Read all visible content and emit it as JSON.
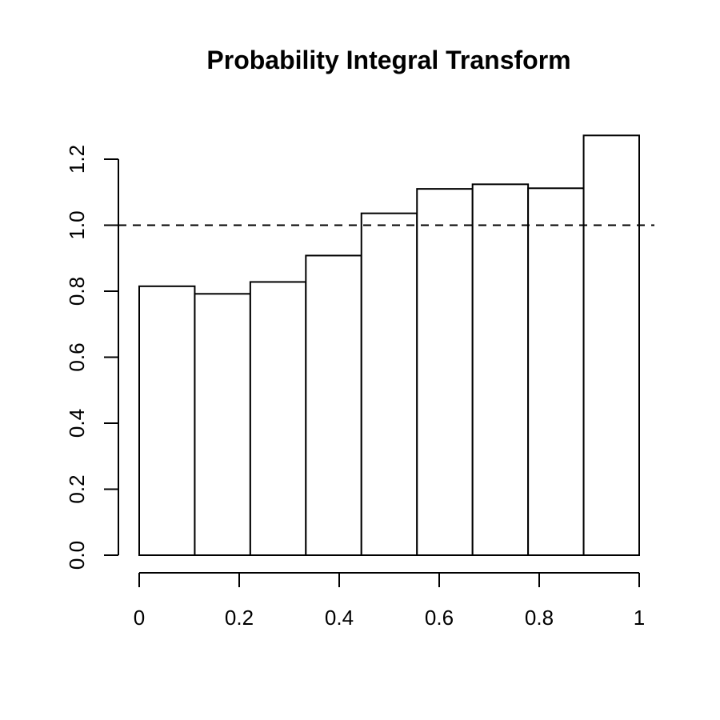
{
  "chart_data": {
    "type": "bar",
    "title": "Probability Integral Transform",
    "xlabel": "",
    "ylabel": "",
    "bin_edges": [
      0,
      0.1111,
      0.2222,
      0.3333,
      0.4444,
      0.5556,
      0.6667,
      0.7778,
      0.8889,
      1
    ],
    "values": [
      0.815,
      0.792,
      0.828,
      0.908,
      1.036,
      1.11,
      1.124,
      1.112,
      1.272
    ],
    "xlim": [
      0,
      1
    ],
    "ylim": [
      0,
      1.2
    ],
    "x_ticks": [
      0,
      0.2,
      0.4,
      0.6,
      0.8,
      1
    ],
    "x_tick_labels": [
      "0",
      "0.2",
      "0.4",
      "0.6",
      "0.8",
      "1"
    ],
    "y_ticks": [
      0,
      0.2,
      0.4,
      0.6,
      0.8,
      1.0,
      1.2
    ],
    "y_tick_labels": [
      "0.0",
      "0.2",
      "0.4",
      "0.6",
      "0.8",
      "1.0",
      "1.2"
    ],
    "reference_line": {
      "y": 1.0,
      "style": "dashed"
    },
    "grid": false,
    "legend": "none"
  }
}
